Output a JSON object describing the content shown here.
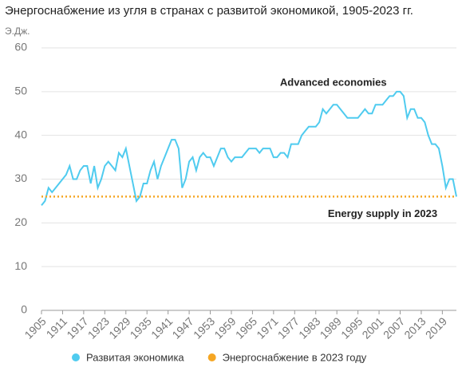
{
  "chart_data": {
    "type": "line",
    "title": "Энергоснабжение из угля в странах с развитой экономикой, 1905-2023 гг.",
    "y_unit": "Э.Дж.",
    "xlim": [
      1905,
      2023
    ],
    "xticks": [
      1905,
      1911,
      1917,
      1923,
      1929,
      1935,
      1941,
      1947,
      1953,
      1959,
      1965,
      1971,
      1977,
      1983,
      1989,
      1995,
      2001,
      2007,
      2013,
      2019
    ],
    "ylim": [
      0,
      60
    ],
    "yticks": [
      0,
      10,
      20,
      30,
      40,
      50,
      60
    ],
    "grid": true,
    "legend": "bottom",
    "annotations": [
      {
        "text": "Advanced economies",
        "x": 1988,
        "y": 52
      },
      {
        "text": "Energy supply in 2023",
        "x": 2002,
        "y": 22
      }
    ],
    "series": [
      {
        "name": "Развитая экономика",
        "color": "#4fcbef",
        "style": "solid",
        "x": [
          1905,
          1906,
          1907,
          1908,
          1909,
          1910,
          1911,
          1912,
          1913,
          1914,
          1915,
          1916,
          1917,
          1918,
          1919,
          1920,
          1921,
          1922,
          1923,
          1924,
          1925,
          1926,
          1927,
          1928,
          1929,
          1930,
          1931,
          1932,
          1933,
          1934,
          1935,
          1936,
          1937,
          1938,
          1939,
          1940,
          1941,
          1942,
          1943,
          1944,
          1945,
          1946,
          1947,
          1948,
          1949,
          1950,
          1951,
          1952,
          1953,
          1954,
          1955,
          1956,
          1957,
          1958,
          1959,
          1960,
          1961,
          1962,
          1963,
          1964,
          1965,
          1966,
          1967,
          1968,
          1969,
          1970,
          1971,
          1972,
          1973,
          1974,
          1975,
          1976,
          1977,
          1978,
          1979,
          1980,
          1981,
          1982,
          1983,
          1984,
          1985,
          1986,
          1987,
          1988,
          1989,
          1990,
          1991,
          1992,
          1993,
          1994,
          1995,
          1996,
          1997,
          1998,
          1999,
          2000,
          2001,
          2002,
          2003,
          2004,
          2005,
          2006,
          2007,
          2008,
          2009,
          2010,
          2011,
          2012,
          2013,
          2014,
          2015,
          2016,
          2017,
          2018,
          2019,
          2020,
          2021,
          2022,
          2023
        ],
        "values": [
          24,
          25,
          28,
          27,
          28,
          29,
          30,
          31,
          33,
          30,
          30,
          32,
          33,
          33,
          29,
          33,
          28,
          30,
          33,
          34,
          33,
          32,
          36,
          35,
          37,
          33,
          29,
          25,
          26,
          29,
          29,
          32,
          34,
          30,
          33,
          35,
          37,
          39,
          39,
          37,
          28,
          30,
          34,
          35,
          32,
          35,
          36,
          35,
          35,
          33,
          35,
          37,
          37,
          35,
          34,
          35,
          35,
          35,
          36,
          37,
          37,
          37,
          36,
          37,
          37,
          37,
          35,
          35,
          36,
          36,
          35,
          38,
          38,
          38,
          40,
          41,
          42,
          42,
          42,
          43,
          46,
          45,
          46,
          47,
          47,
          46,
          45,
          44,
          44,
          44,
          44,
          45,
          46,
          45,
          45,
          47,
          47,
          47,
          48,
          49,
          49,
          50,
          50,
          49,
          44,
          46,
          46,
          44,
          44,
          43,
          40,
          38,
          38,
          37,
          33,
          28,
          30,
          30,
          26
        ]
      },
      {
        "name": "Энергоснабжение в 2023 году",
        "color": "#f5a623",
        "style": "dotted",
        "x": [
          1905,
          2023
        ],
        "values": [
          26,
          26
        ]
      }
    ]
  }
}
